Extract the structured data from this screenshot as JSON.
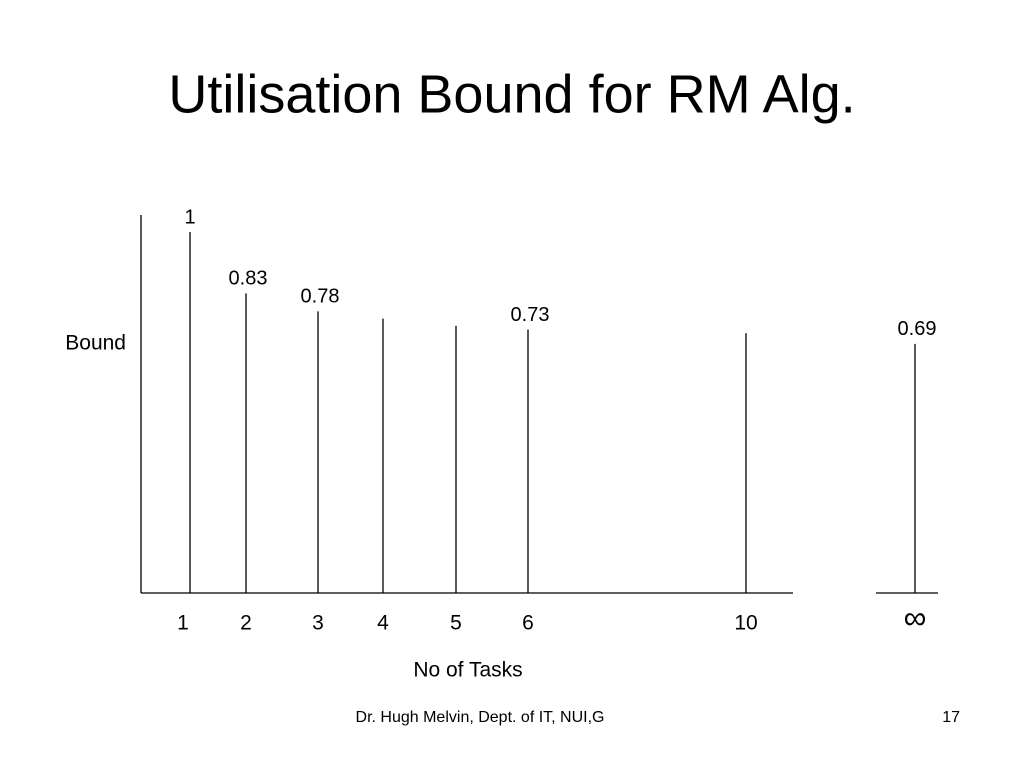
{
  "chart_data": {
    "type": "stem",
    "title": "Utilisation Bound for RM Alg.",
    "x_label": "No of Tasks",
    "y_label": "Bound",
    "categories": [
      "1",
      "2",
      "3",
      "4",
      "5",
      "6",
      "10",
      "∞"
    ],
    "values": [
      1,
      0.83,
      0.78,
      0.76,
      0.74,
      0.73,
      0.72,
      0.69
    ],
    "value_labels": [
      "1",
      "0.83",
      "0.78",
      null,
      null,
      "0.73",
      null,
      "0.69"
    ],
    "ylim": [
      0,
      1
    ],
    "color": "#000000"
  },
  "footer": {
    "text": "Dr. Hugh Melvin, Dept. of IT, NUI,G",
    "page": "17"
  }
}
